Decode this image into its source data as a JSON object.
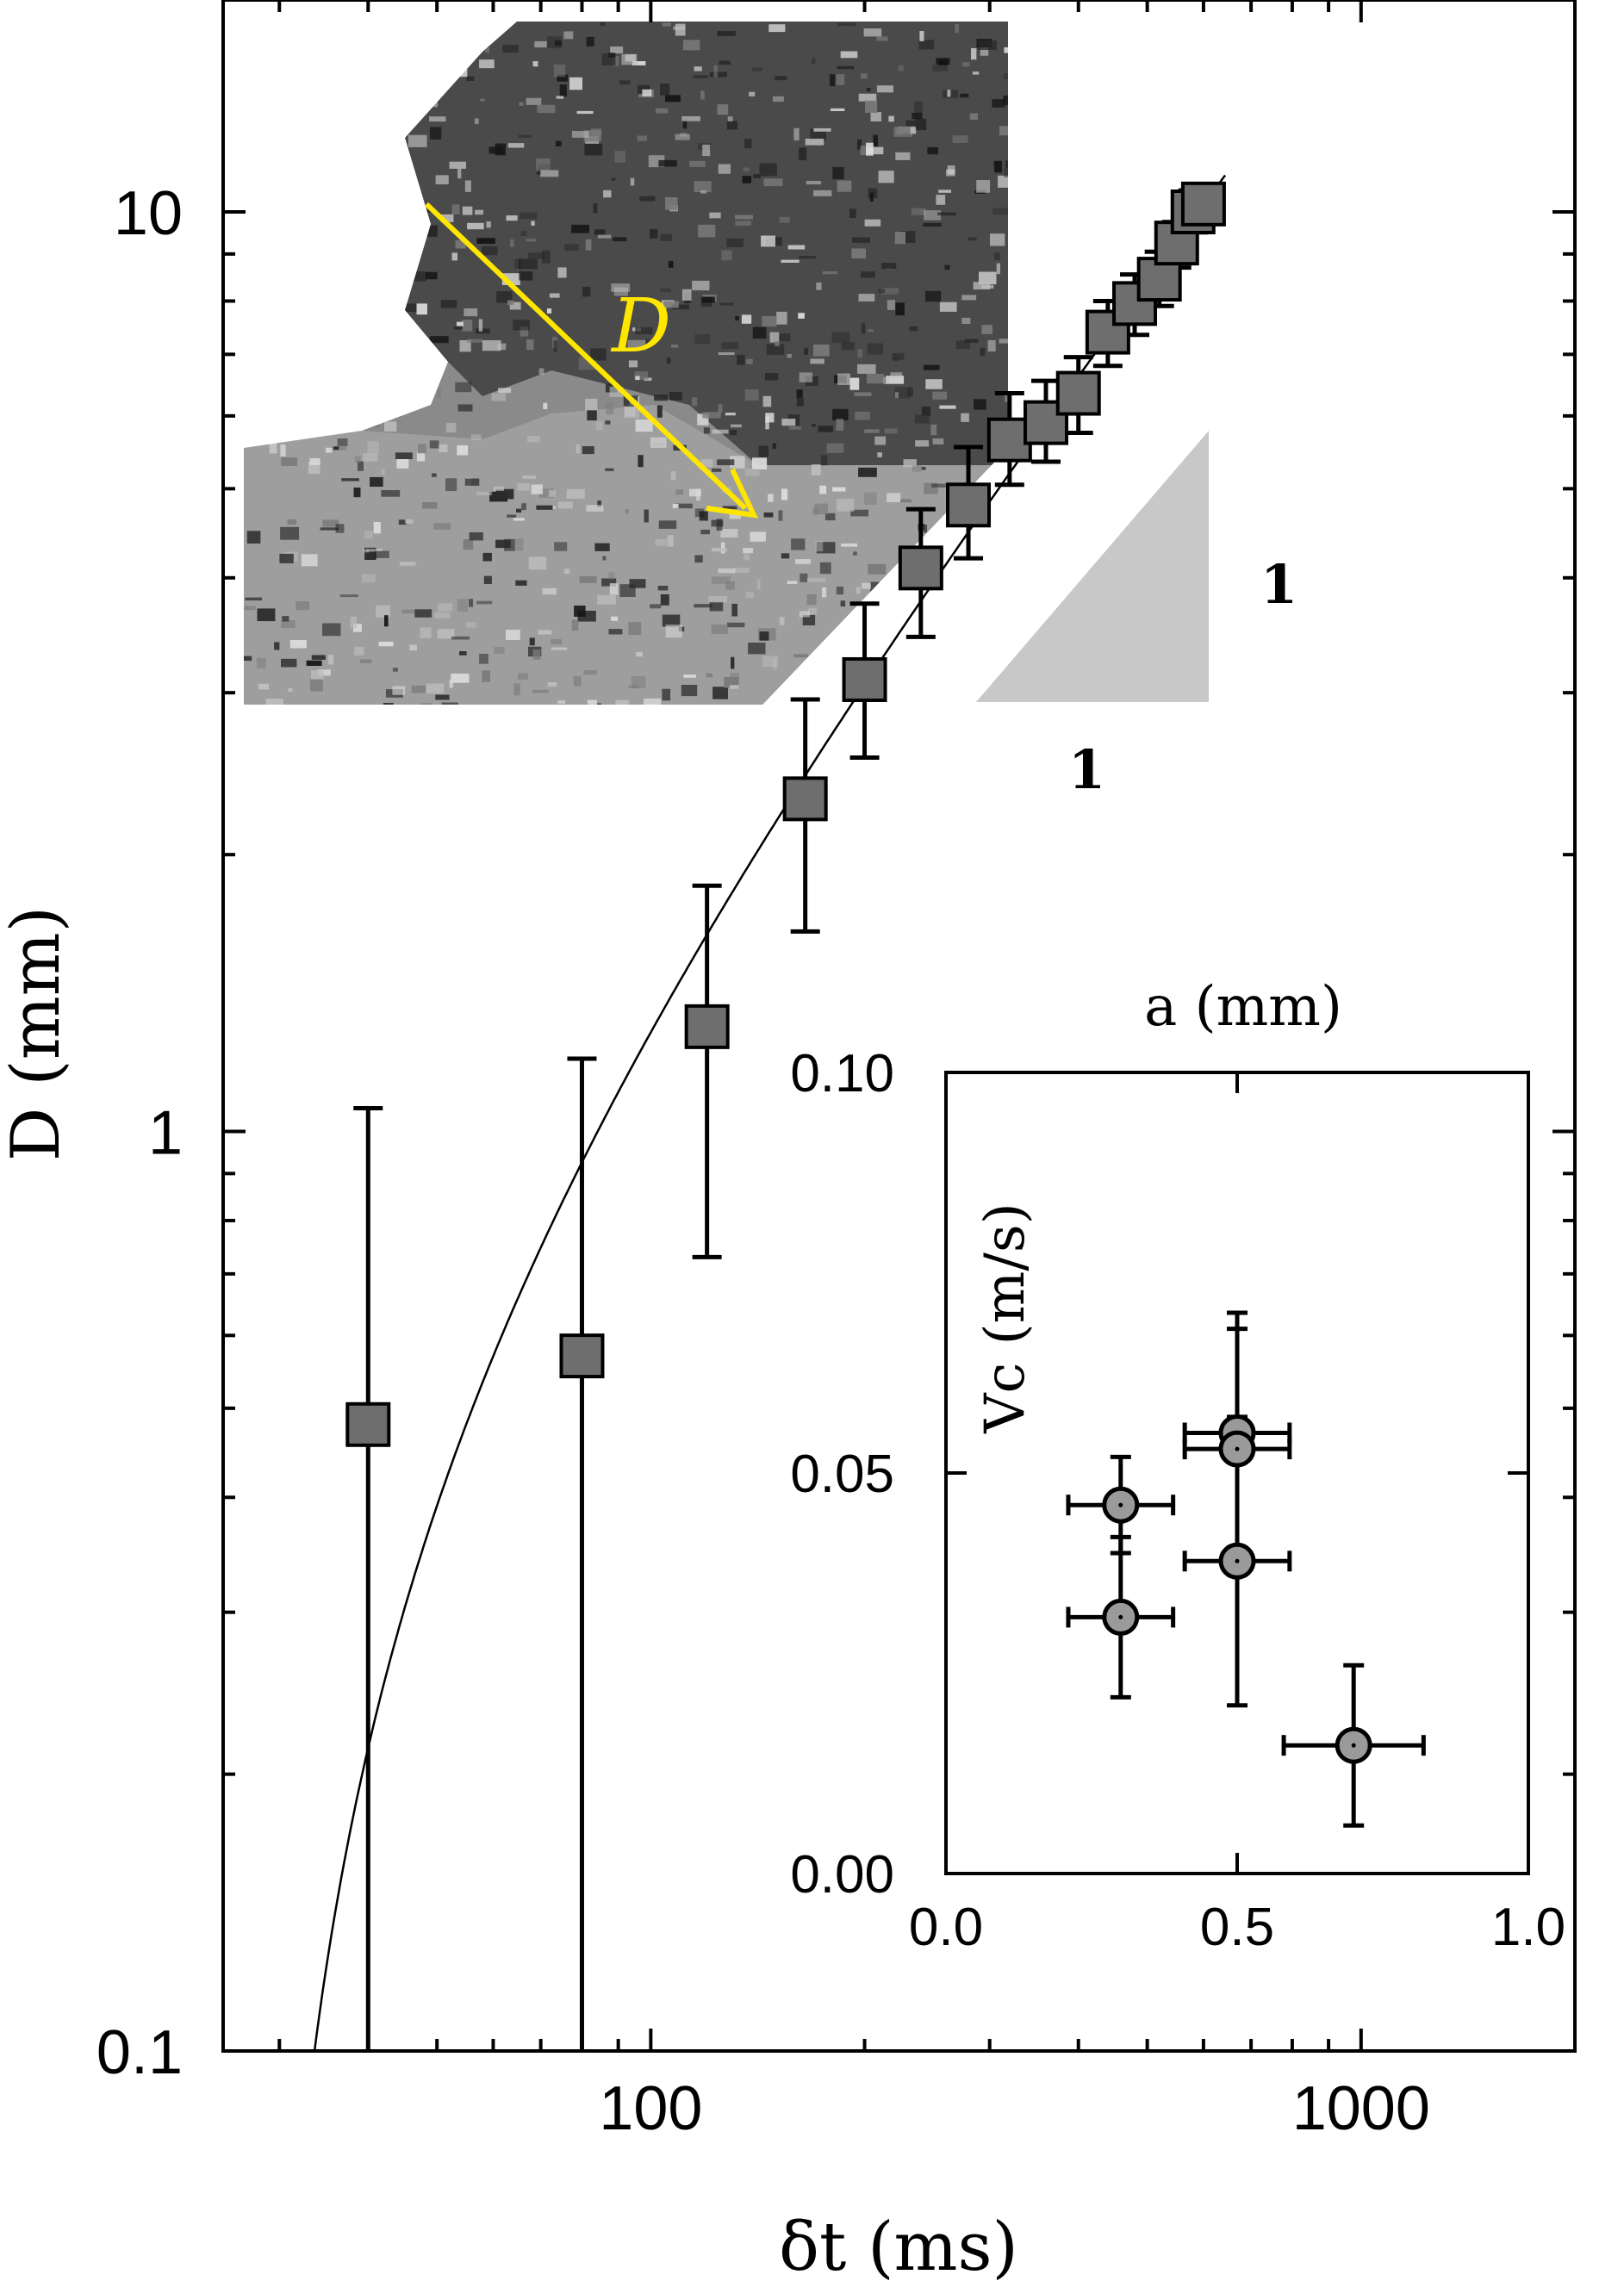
{
  "colors": {
    "frame": "#000000",
    "marker_fill": "#6e6e6e",
    "inset_marker_fill": "#9a9a9a",
    "fit_line": "#000000",
    "arrow": "#ffe600",
    "slope_triangle": "#c8c8c8",
    "photo_dark": "#2a2a2a",
    "photo_mid": "#7a7a7a",
    "photo_light": "#bdbdbd"
  },
  "chart_data": [
    {
      "type": "scatter",
      "name": "main",
      "xscale": "log",
      "yscale": "log",
      "xlim": [
        25,
        2000
      ],
      "ylim": [
        0.1,
        17
      ],
      "xlabel": "δt (ms)",
      "ylabel": "D (mm)",
      "x_ticks": [
        100,
        1000
      ],
      "x_tick_labels": [
        "100",
        "1000"
      ],
      "y_ticks": [
        0.1,
        1,
        10
      ],
      "y_tick_labels": [
        "0.1",
        "1",
        "10"
      ],
      "points": [
        {
          "x": 40,
          "y": 0.48,
          "ylo": 0.1,
          "yhi": 1.06
        },
        {
          "x": 80,
          "y": 0.57,
          "ylo": 0.1,
          "yhi": 1.2
        },
        {
          "x": 120,
          "y": 1.3,
          "ylo": 0.73,
          "yhi": 1.85
        },
        {
          "x": 165,
          "y": 2.3,
          "ylo": 1.65,
          "yhi": 2.95
        },
        {
          "x": 200,
          "y": 3.1,
          "ylo": 2.55,
          "yhi": 3.75
        },
        {
          "x": 240,
          "y": 4.1,
          "ylo": 3.45,
          "yhi": 4.75
        },
        {
          "x": 280,
          "y": 4.8,
          "ylo": 4.2,
          "yhi": 5.55
        },
        {
          "x": 320,
          "y": 5.65,
          "ylo": 5.05,
          "yhi": 6.35
        },
        {
          "x": 360,
          "y": 5.9,
          "ylo": 5.35,
          "yhi": 6.55
        },
        {
          "x": 400,
          "y": 6.35,
          "ylo": 5.75,
          "yhi": 6.95
        },
        {
          "x": 440,
          "y": 7.4,
          "ylo": 6.8,
          "yhi": 8.0
        },
        {
          "x": 480,
          "y": 7.95,
          "ylo": 7.35,
          "yhi": 8.55
        },
        {
          "x": 520,
          "y": 8.45,
          "ylo": 7.9,
          "yhi": 9.05
        },
        {
          "x": 550,
          "y": 9.25,
          "ylo": 8.7,
          "yhi": 9.75
        },
        {
          "x": 580,
          "y": 10.0,
          "ylo": 9.5,
          "yhi": 10.55
        },
        {
          "x": 600,
          "y": 10.2,
          "ylo": 9.7,
          "yhi": 10.7
        }
      ],
      "fit_line": {
        "form": "D = a·(δt − t0)",
        "a": 0.0178,
        "t0": 28
      }
    },
    {
      "type": "scatter",
      "name": "inset",
      "xlim": [
        0.0,
        1.0
      ],
      "ylim": [
        0.0,
        0.1
      ],
      "xlabel": "a (mm)",
      "ylabel": "Vc (m/s)",
      "x_ticks": [
        0.0,
        0.5,
        1.0
      ],
      "x_tick_labels": [
        "0.0",
        "0.5",
        "1.0"
      ],
      "y_ticks": [
        0.0,
        0.05,
        0.1
      ],
      "y_tick_labels": [
        "0.00",
        "0.05",
        "0.10"
      ],
      "points": [
        {
          "x": 0.3,
          "y": 0.046,
          "xerr": 0.09,
          "yerr": 0.006
        },
        {
          "x": 0.3,
          "y": 0.032,
          "xerr": 0.09,
          "yerr": 0.01
        },
        {
          "x": 0.5,
          "y": 0.055,
          "xerr": 0.09,
          "yerr": 0.015
        },
        {
          "x": 0.5,
          "y": 0.053,
          "xerr": 0.09,
          "yerr": 0.015
        },
        {
          "x": 0.5,
          "y": 0.039,
          "xerr": 0.09,
          "yerr": 0.018
        },
        {
          "x": 0.7,
          "y": 0.016,
          "xerr": 0.12,
          "yerr": 0.01
        }
      ]
    }
  ],
  "slope_triangle": {
    "vertical_label": "1",
    "horizontal_label": "1"
  },
  "photo_inset": {
    "arrow_label": "D"
  }
}
